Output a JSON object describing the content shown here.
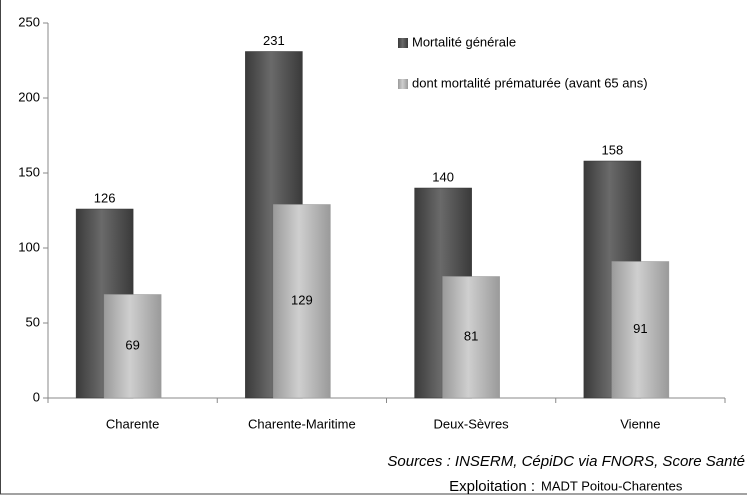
{
  "chart_data": {
    "type": "bar",
    "categories": [
      "Charente",
      "Charente-Maritime",
      "Deux-Sèvres",
      "Vienne"
    ],
    "series": [
      {
        "name": "Mortalité générale",
        "color": "#555555",
        "values": [
          126,
          231,
          140,
          158
        ]
      },
      {
        "name": "dont mortalité prématurée (avant 65 ans)",
        "color": "#b8b8b8",
        "values": [
          69,
          129,
          81,
          91
        ]
      }
    ],
    "ylim": [
      0,
      250
    ],
    "yticks": [
      0,
      50,
      100,
      150,
      200,
      250
    ],
    "grid": false,
    "legend": "top-right",
    "source": "Sources : INSERM, CépiDC via FNORS, Score Santé",
    "exploitation_label": "Exploitation :",
    "exploitation": "MADT Poitou-Charentes"
  }
}
